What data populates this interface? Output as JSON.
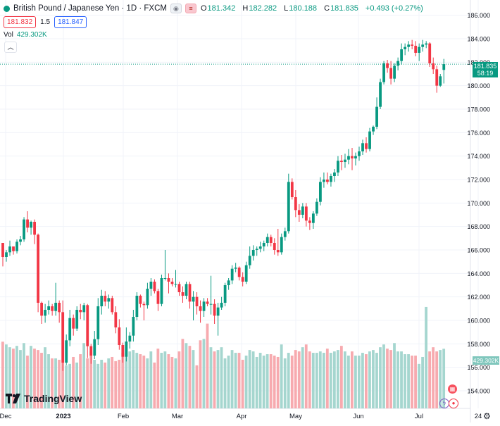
{
  "header": {
    "title": "British Pound / Japanese Yen · 1D · FXCM",
    "open_label": "O",
    "open": "181.342",
    "high_label": "H",
    "high": "182.282",
    "low_label": "L",
    "low": "180.188",
    "close_label": "C",
    "close": "181.835",
    "change": "+0.493 (+0.27%)",
    "bid": "181.832",
    "spread": "1.5",
    "ask": "181.847",
    "vol_label": "Vol",
    "vol_value": "429.302K",
    "collapse_icon": "chevron-up-icon"
  },
  "price_tag": {
    "price": "181.835",
    "countdown": "58:19"
  },
  "volume_tag": "429.302K",
  "logo_text": "TradingView",
  "colors": {
    "up": "#089981",
    "down": "#f23645",
    "up_vol": "#a5d6cf",
    "down_vol": "#f7aaaf",
    "grid": "#f0f3fa",
    "last_line": "#089981"
  },
  "icons": [
    "calendar-icon",
    "flash-icon",
    "record-icon",
    "settings-icon"
  ],
  "chart_data": {
    "type": "candlestick",
    "title": "British Pound / Japanese Yen · 1D · FXCM",
    "y_axis": {
      "ylim": [
        152.5,
        187.3
      ],
      "ticks": [
        154,
        156,
        158,
        160,
        162,
        164,
        166,
        168,
        170,
        172,
        174,
        176,
        178,
        180,
        182,
        184,
        186
      ]
    },
    "x_axis": {
      "labels": [
        "Dec",
        "2023",
        "Feb",
        "Mar",
        "Apr",
        "May",
        "Jun",
        "Jul",
        "24"
      ]
    },
    "last_price": 181.835,
    "candles_ohlc": [
      [
        166.6,
        165.4,
        164.6,
        165.4
      ],
      [
        165.4,
        166.0,
        165.0,
        165.8
      ],
      [
        165.8,
        166.8,
        165.5,
        166.3
      ],
      [
        166.3,
        166.2,
        165.6,
        165.9
      ],
      [
        165.9,
        166.9,
        165.7,
        166.7
      ],
      [
        166.7,
        167.2,
        166.4,
        166.9
      ],
      [
        166.9,
        168.8,
        166.7,
        168.6
      ],
      [
        168.6,
        169.3,
        167.5,
        167.9
      ],
      [
        167.9,
        168.5,
        167.3,
        168.4
      ],
      [
        168.4,
        168.6,
        166.5,
        167.3
      ],
      [
        167.3,
        167.4,
        160.7,
        161.5
      ],
      [
        161.5,
        161.6,
        159.7,
        160.4
      ],
      [
        160.4,
        161.4,
        159.8,
        160.9
      ],
      [
        160.9,
        161.7,
        160.5,
        161.2
      ],
      [
        161.2,
        161.4,
        160.4,
        160.8
      ],
      [
        160.8,
        163.2,
        160.4,
        161.5
      ],
      [
        161.5,
        161.7,
        159.8,
        160.7
      ],
      [
        160.7,
        161.7,
        155.7,
        156.4
      ],
      [
        156.4,
        158.8,
        156.2,
        158.3
      ],
      [
        158.3,
        160.9,
        157.8,
        160.2
      ],
      [
        160.2,
        160.5,
        158.7,
        159.3
      ],
      [
        159.3,
        161.2,
        159.1,
        160.9
      ],
      [
        160.9,
        161.4,
        160.1,
        160.7
      ],
      [
        160.7,
        161.5,
        160.0,
        161.3
      ],
      [
        161.3,
        161.4,
        156.8,
        157.8
      ],
      [
        157.8,
        158.0,
        156.3,
        157.0
      ],
      [
        157.0,
        159.1,
        156.7,
        158.4
      ],
      [
        158.4,
        161.9,
        157.9,
        161.2
      ],
      [
        161.2,
        162.6,
        160.5,
        162.1
      ],
      [
        162.1,
        162.5,
        161.2,
        161.6
      ],
      [
        161.6,
        162.2,
        161.0,
        161.9
      ],
      [
        161.9,
        162.1,
        160.5,
        160.7
      ],
      [
        160.7,
        161.2,
        158.9,
        159.4
      ],
      [
        159.4,
        160.1,
        157.5,
        157.9
      ],
      [
        157.9,
        158.1,
        156.4,
        156.9
      ],
      [
        156.9,
        159.4,
        156.5,
        158.2
      ],
      [
        158.2,
        159.0,
        157.6,
        158.7
      ],
      [
        158.7,
        160.9,
        158.2,
        160.3
      ],
      [
        160.3,
        162.4,
        160.0,
        162.1
      ],
      [
        162.1,
        162.2,
        161.1,
        161.4
      ],
      [
        161.4,
        161.6,
        160.0,
        161.3
      ],
      [
        161.3,
        163.2,
        161.0,
        162.7
      ],
      [
        162.7,
        163.6,
        162.1,
        163.3
      ],
      [
        163.3,
        163.5,
        162.3,
        162.5
      ],
      [
        162.5,
        162.7,
        160.8,
        161.4
      ],
      [
        161.4,
        163.9,
        161.2,
        163.6
      ],
      [
        163.6,
        166.0,
        163.4,
        163.6
      ],
      [
        163.6,
        164.0,
        162.3,
        163.3
      ],
      [
        163.3,
        163.6,
        162.9,
        163.1
      ],
      [
        163.1,
        164.3,
        162.8,
        163.1
      ],
      [
        163.1,
        163.3,
        162.1,
        162.4
      ],
      [
        162.4,
        162.9,
        161.5,
        162.1
      ],
      [
        162.1,
        163.3,
        161.8,
        163.1
      ],
      [
        163.1,
        163.3,
        161.0,
        161.6
      ],
      [
        161.6,
        162.5,
        160.0,
        162.0
      ],
      [
        162.0,
        162.4,
        160.5,
        161.2
      ],
      [
        161.2,
        161.7,
        159.8,
        160.8
      ],
      [
        160.8,
        161.9,
        160.3,
        161.6
      ],
      [
        161.6,
        161.9,
        161.2,
        161.4
      ],
      [
        161.4,
        163.8,
        160.5,
        161.4
      ],
      [
        161.4,
        161.8,
        159.7,
        160.4
      ],
      [
        160.4,
        161.5,
        158.7,
        161.1
      ],
      [
        161.1,
        162.0,
        160.9,
        161.5
      ],
      [
        161.5,
        163.2,
        161.2,
        163.0
      ],
      [
        163.0,
        163.6,
        162.6,
        163.4
      ],
      [
        163.4,
        164.7,
        163.1,
        164.4
      ],
      [
        164.4,
        164.9,
        164.1,
        164.5
      ],
      [
        164.5,
        164.6,
        163.4,
        163.7
      ],
      [
        163.7,
        164.1,
        162.9,
        163.3
      ],
      [
        163.3,
        165.0,
        163.1,
        164.7
      ],
      [
        164.7,
        166.3,
        164.4,
        165.5
      ],
      [
        165.5,
        166.4,
        165.1,
        166.0
      ],
      [
        166.0,
        166.3,
        165.5,
        166.1
      ],
      [
        166.1,
        166.7,
        165.8,
        166.3
      ],
      [
        166.3,
        166.8,
        165.9,
        166.6
      ],
      [
        166.6,
        167.4,
        166.3,
        167.1
      ],
      [
        167.1,
        167.3,
        166.3,
        166.6
      ],
      [
        166.6,
        167.0,
        165.6,
        166.0
      ],
      [
        166.0,
        167.8,
        165.5,
        165.8
      ],
      [
        165.8,
        167.4,
        165.6,
        167.1
      ],
      [
        167.1,
        167.9,
        166.8,
        167.6
      ],
      [
        167.6,
        172.5,
        167.4,
        171.8
      ],
      [
        171.8,
        172.1,
        170.3,
        170.5
      ],
      [
        170.5,
        171.1,
        168.8,
        169.4
      ],
      [
        169.4,
        169.9,
        168.4,
        169.0
      ],
      [
        169.0,
        170.0,
        168.7,
        169.7
      ],
      [
        169.7,
        170.0,
        168.0,
        168.5
      ],
      [
        168.5,
        168.8,
        167.7,
        168.3
      ],
      [
        168.3,
        169.3,
        167.8,
        169.1
      ],
      [
        169.1,
        170.4,
        168.9,
        170.1
      ],
      [
        170.1,
        172.2,
        169.8,
        171.8
      ],
      [
        171.8,
        172.6,
        171.3,
        172.0
      ],
      [
        172.0,
        172.6,
        171.6,
        171.8
      ],
      [
        171.8,
        172.5,
        171.4,
        172.3
      ],
      [
        172.3,
        172.9,
        171.8,
        172.6
      ],
      [
        172.6,
        174.0,
        172.3,
        173.6
      ],
      [
        173.6,
        174.1,
        172.8,
        173.5
      ],
      [
        173.5,
        174.2,
        173.0,
        173.7
      ],
      [
        173.7,
        174.6,
        173.3,
        174.0
      ],
      [
        174.0,
        174.7,
        172.8,
        173.8
      ],
      [
        173.8,
        174.3,
        173.2,
        174.0
      ],
      [
        174.0,
        174.8,
        173.6,
        174.4
      ],
      [
        174.4,
        175.4,
        174.1,
        175.1
      ],
      [
        175.1,
        175.6,
        174.3,
        174.6
      ],
      [
        174.6,
        176.4,
        174.4,
        176.1
      ],
      [
        176.1,
        176.6,
        175.8,
        176.5
      ],
      [
        176.5,
        179.0,
        176.3,
        178.2
      ],
      [
        178.2,
        180.6,
        178.0,
        180.3
      ],
      [
        180.3,
        182.1,
        180.1,
        181.9
      ],
      [
        181.9,
        182.2,
        181.1,
        181.5
      ],
      [
        181.5,
        182.1,
        180.1,
        180.6
      ],
      [
        180.6,
        181.9,
        180.3,
        181.7
      ],
      [
        181.7,
        182.4,
        181.3,
        182.1
      ],
      [
        182.1,
        183.6,
        181.8,
        183.1
      ],
      [
        183.1,
        183.6,
        182.6,
        183.3
      ],
      [
        183.3,
        183.8,
        182.9,
        183.5
      ],
      [
        183.5,
        183.9,
        183.1,
        183.4
      ],
      [
        183.4,
        183.8,
        182.5,
        182.8
      ],
      [
        182.8,
        183.6,
        182.1,
        183.3
      ],
      [
        183.3,
        183.9,
        182.9,
        183.5
      ],
      [
        183.5,
        183.8,
        183.2,
        183.6
      ],
      [
        183.6,
        183.7,
        181.6,
        181.9
      ],
      [
        181.9,
        182.4,
        181.0,
        181.4
      ],
      [
        181.4,
        181.7,
        179.4,
        180.0
      ],
      [
        180.0,
        181.0,
        179.9,
        180.8
      ],
      [
        181.342,
        182.282,
        180.188,
        181.835
      ]
    ],
    "volume_thousands": [
      480,
      460,
      440,
      430,
      450,
      420,
      470,
      380,
      450,
      430,
      420,
      400,
      440,
      390,
      360,
      360,
      350,
      330,
      310,
      320,
      370,
      330,
      390,
      470,
      360,
      410,
      350,
      320,
      350,
      330,
      360,
      370,
      340,
      350,
      400,
      440,
      410,
      420,
      400,
      390,
      380,
      360,
      410,
      330,
      430,
      400,
      410,
      390,
      370,
      360,
      410,
      500,
      470,
      450,
      420,
      310,
      490,
      500,
      610,
      440,
      410,
      420,
      440,
      360,
      380,
      420,
      400,
      400,
      350,
      380,
      420,
      410,
      370,
      400,
      380,
      390,
      390,
      380,
      370,
      460,
      360,
      400,
      380,
      420,
      410,
      440,
      460,
      410,
      400,
      400,
      410,
      400,
      430,
      400,
      410,
      420,
      450,
      410,
      380,
      410,
      380,
      380,
      400,
      390,
      410,
      420,
      400,
      440,
      460,
      430,
      420,
      470,
      410,
      410,
      390,
      390,
      380,
      380,
      320,
      370,
      730,
      410,
      440,
      410,
      420,
      429
    ]
  }
}
